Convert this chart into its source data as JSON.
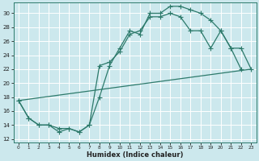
{
  "bg_color": "#cce8ed",
  "grid_color": "#b8d8de",
  "line_color": "#2d7a6b",
  "xlabel": "Humidex (Indice chaleur)",
  "xlim": [
    -0.5,
    23.5
  ],
  "ylim": [
    11.5,
    31.5
  ],
  "xticks": [
    0,
    1,
    2,
    3,
    4,
    5,
    6,
    7,
    8,
    9,
    10,
    11,
    12,
    13,
    14,
    15,
    16,
    17,
    18,
    19,
    20,
    21,
    22,
    23
  ],
  "yticks": [
    12,
    14,
    16,
    18,
    20,
    22,
    24,
    26,
    28,
    30
  ],
  "curve_upper": {
    "x": [
      0,
      1,
      2,
      3,
      4,
      5,
      6,
      7,
      8,
      9,
      10,
      11,
      12,
      13,
      14,
      15,
      16,
      17,
      18,
      19,
      20,
      21,
      22
    ],
    "y": [
      17.5,
      15.0,
      14.0,
      14.0,
      13.0,
      13.5,
      13.0,
      14.0,
      18.0,
      22.5,
      25.0,
      27.5,
      27.0,
      30.0,
      30.0,
      31.0,
      31.0,
      30.5,
      30.0,
      29.0,
      27.5,
      25.0,
      22.0
    ]
  },
  "curve_spike": {
    "x": [
      0,
      1,
      2,
      3,
      4,
      5,
      6,
      7,
      8,
      9,
      10,
      11,
      12,
      13,
      14,
      15,
      16,
      17,
      18,
      19,
      20,
      21,
      22,
      23
    ],
    "y": [
      17.5,
      15.0,
      14.0,
      14.0,
      13.5,
      13.5,
      13.0,
      14.0,
      22.5,
      23.0,
      24.5,
      27.0,
      27.5,
      29.5,
      29.5,
      30.0,
      29.5,
      27.5,
      27.5,
      25.0,
      27.5,
      25.0,
      25.0,
      22.0
    ]
  },
  "curve_straight": {
    "x": [
      0,
      23
    ],
    "y": [
      17.5,
      22.0
    ]
  }
}
